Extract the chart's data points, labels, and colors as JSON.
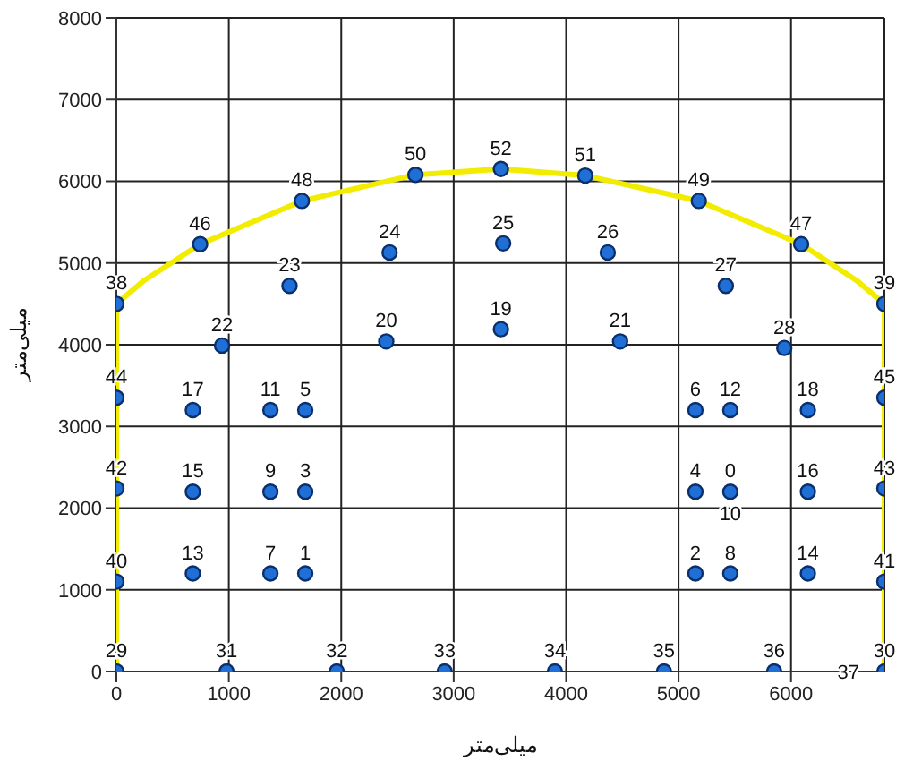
{
  "chart_data": {
    "type": "scatter",
    "xlabel": "میلی‌متر",
    "ylabel": "میلی‌متر",
    "xlim": [
      0,
      6830
    ],
    "ylim": [
      0,
      8000
    ],
    "xticks": [
      0,
      1000,
      2000,
      3000,
      4000,
      5000,
      6000
    ],
    "yticks": [
      0,
      1000,
      2000,
      3000,
      4000,
      5000,
      6000,
      7000,
      8000
    ],
    "grid": true,
    "series": [
      {
        "type": "line",
        "color": "#f2ec00",
        "marker": "none",
        "x": [
          0,
          0,
          250,
          745,
          1650,
          2660,
          3420,
          4170,
          5180,
          6090,
          6580,
          6830,
          6830
        ],
        "values": [
          0,
          4500,
          4790,
          5230,
          5760,
          6080,
          6150,
          6070,
          5760,
          5230,
          4790,
          4500,
          0
        ]
      },
      {
        "color": "#1f6fd6",
        "marker": "circle",
        "x": [
          5460,
          1680,
          5150,
          1680,
          5150,
          1680,
          5150,
          1370,
          5460,
          1370,
          1370,
          5460,
          680,
          6150,
          680,
          6150,
          680,
          6150,
          3420,
          2400,
          4480,
          940,
          1540,
          2430,
          3440,
          4370,
          5420,
          5940,
          0,
          6830,
          980,
          1960,
          2920,
          3900,
          4870,
          5850,
          0,
          6830,
          0,
          6830,
          0,
          6830,
          0,
          6830,
          745,
          6090,
          1650,
          5180,
          2660,
          4170,
          3420
        ],
        "values": [
          2200,
          1200,
          1200,
          2200,
          2200,
          3200,
          3200,
          1200,
          1200,
          2200,
          3200,
          3200,
          1200,
          1200,
          2200,
          2200,
          3200,
          3200,
          4190,
          4040,
          4040,
          3990,
          4720,
          5130,
          5240,
          5130,
          4720,
          3960,
          0,
          0,
          0,
          0,
          0,
          0,
          0,
          0,
          4500,
          4500,
          1100,
          1100,
          2240,
          2240,
          3350,
          3350,
          5230,
          5230,
          5760,
          5760,
          6080,
          6070,
          6150
        ]
      }
    ],
    "annotations": [
      {
        "text": "0",
        "x": 5460,
        "y": 2200
      },
      {
        "text": "1",
        "x": 1680,
        "y": 1200
      },
      {
        "text": "2",
        "x": 5150,
        "y": 1200
      },
      {
        "text": "3",
        "x": 1680,
        "y": 2200
      },
      {
        "text": "4",
        "x": 5150,
        "y": 2200
      },
      {
        "text": "5",
        "x": 1680,
        "y": 3200
      },
      {
        "text": "6",
        "x": 5150,
        "y": 3200
      },
      {
        "text": "7",
        "x": 1370,
        "y": 1200
      },
      {
        "text": "8",
        "x": 5460,
        "y": 1200
      },
      {
        "text": "9",
        "x": 1370,
        "y": 2200
      },
      {
        "text": "10",
        "x": 5460,
        "y": 2200
      },
      {
        "text": "11",
        "x": 1370,
        "y": 3200
      },
      {
        "text": "12",
        "x": 5460,
        "y": 3200
      },
      {
        "text": "13",
        "x": 680,
        "y": 1200
      },
      {
        "text": "14",
        "x": 6150,
        "y": 1200
      },
      {
        "text": "15",
        "x": 680,
        "y": 2200
      },
      {
        "text": "16",
        "x": 6150,
        "y": 2200
      },
      {
        "text": "17",
        "x": 680,
        "y": 3200
      },
      {
        "text": "18",
        "x": 6150,
        "y": 3200
      },
      {
        "text": "19",
        "x": 3420,
        "y": 4190
      },
      {
        "text": "20",
        "x": 2400,
        "y": 4040
      },
      {
        "text": "21",
        "x": 4480,
        "y": 4040
      },
      {
        "text": "22",
        "x": 940,
        "y": 3990
      },
      {
        "text": "23",
        "x": 1540,
        "y": 4720
      },
      {
        "text": "24",
        "x": 2430,
        "y": 5130
      },
      {
        "text": "25",
        "x": 3440,
        "y": 5240
      },
      {
        "text": "26",
        "x": 4370,
        "y": 5130
      },
      {
        "text": "27",
        "x": 5420,
        "y": 4720
      },
      {
        "text": "28",
        "x": 5940,
        "y": 3960
      },
      {
        "text": "29",
        "x": 0,
        "y": 0
      },
      {
        "text": "30",
        "x": 6830,
        "y": 0
      },
      {
        "text": "31",
        "x": 980,
        "y": 0
      },
      {
        "text": "32",
        "x": 1960,
        "y": 0
      },
      {
        "text": "33",
        "x": 2920,
        "y": 0
      },
      {
        "text": "34",
        "x": 3900,
        "y": 0
      },
      {
        "text": "35",
        "x": 4870,
        "y": 0
      },
      {
        "text": "36",
        "x": 5850,
        "y": 0
      },
      {
        "text": "37",
        "x": 6830,
        "y": 0
      },
      {
        "text": "38",
        "x": 0,
        "y": 4500
      },
      {
        "text": "39",
        "x": 6830,
        "y": 4500
      },
      {
        "text": "40",
        "x": 0,
        "y": 1100
      },
      {
        "text": "41",
        "x": 6830,
        "y": 1100
      },
      {
        "text": "42",
        "x": 0,
        "y": 2240
      },
      {
        "text": "43",
        "x": 6830,
        "y": 2240
      },
      {
        "text": "44",
        "x": 0,
        "y": 3350
      },
      {
        "text": "45",
        "x": 6830,
        "y": 3350
      },
      {
        "text": "46",
        "x": 745,
        "y": 5230
      },
      {
        "text": "47",
        "x": 6090,
        "y": 5230
      },
      {
        "text": "48",
        "x": 1650,
        "y": 5760
      },
      {
        "text": "49",
        "x": 5180,
        "y": 5760
      },
      {
        "text": "50",
        "x": 2660,
        "y": 6080
      },
      {
        "text": "51",
        "x": 4170,
        "y": 6070
      },
      {
        "text": "52",
        "x": 3420,
        "y": 6150
      }
    ]
  }
}
